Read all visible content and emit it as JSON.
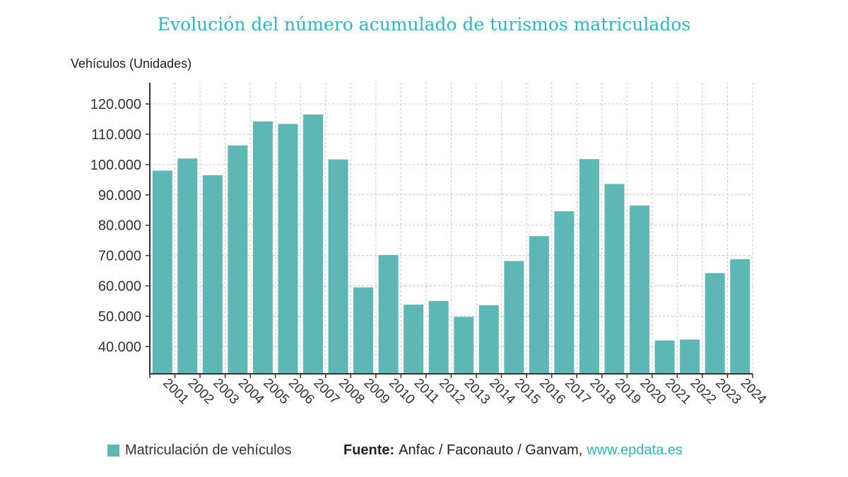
{
  "colors": {
    "bar": "#5eb7b5",
    "title": "#2fb4c4",
    "link": "#2fb4c4",
    "grid": "#c8c8c8",
    "axis": "#333333",
    "tick_text": "#333333"
  },
  "legend": {
    "label": "Matriculación de vehículos"
  },
  "source": {
    "label": "Fuente:",
    "text": "Anfac / Faconauto / Ganvam,",
    "link": "www.epdata.es"
  },
  "chart_data": {
    "type": "bar",
    "title": "Evolución del número acumulado de turismos matriculados",
    "ylabel": "Vehículos (Unidades)",
    "xlabel": "",
    "ylim": [
      31000,
      127000
    ],
    "yticks": [
      40000,
      50000,
      60000,
      70000,
      80000,
      90000,
      100000,
      110000,
      120000
    ],
    "ytick_labels": [
      "40.000",
      "50.000",
      "60.000",
      "70.000",
      "80.000",
      "90.000",
      "100.000",
      "110.000",
      "120.000"
    ],
    "categories": [
      "2001",
      "2002",
      "2003",
      "2004",
      "2005",
      "2006",
      "2007",
      "2008",
      "2009",
      "2010",
      "2011",
      "2012",
      "2013",
      "2014",
      "2015",
      "2016",
      "2017",
      "2018",
      "2019",
      "2020",
      "2021",
      "2022",
      "2023",
      "2024"
    ],
    "series": [
      {
        "name": "Matriculación de vehículos",
        "values": [
          98000,
          102000,
          96500,
          106300,
          114200,
          113400,
          116500,
          101700,
          59500,
          70200,
          53800,
          55000,
          49800,
          53600,
          68200,
          76400,
          84600,
          101800,
          93600,
          86500,
          42000,
          42300,
          64200,
          68800
        ]
      }
    ],
    "grid": true,
    "legend_position": "bottom-left"
  }
}
